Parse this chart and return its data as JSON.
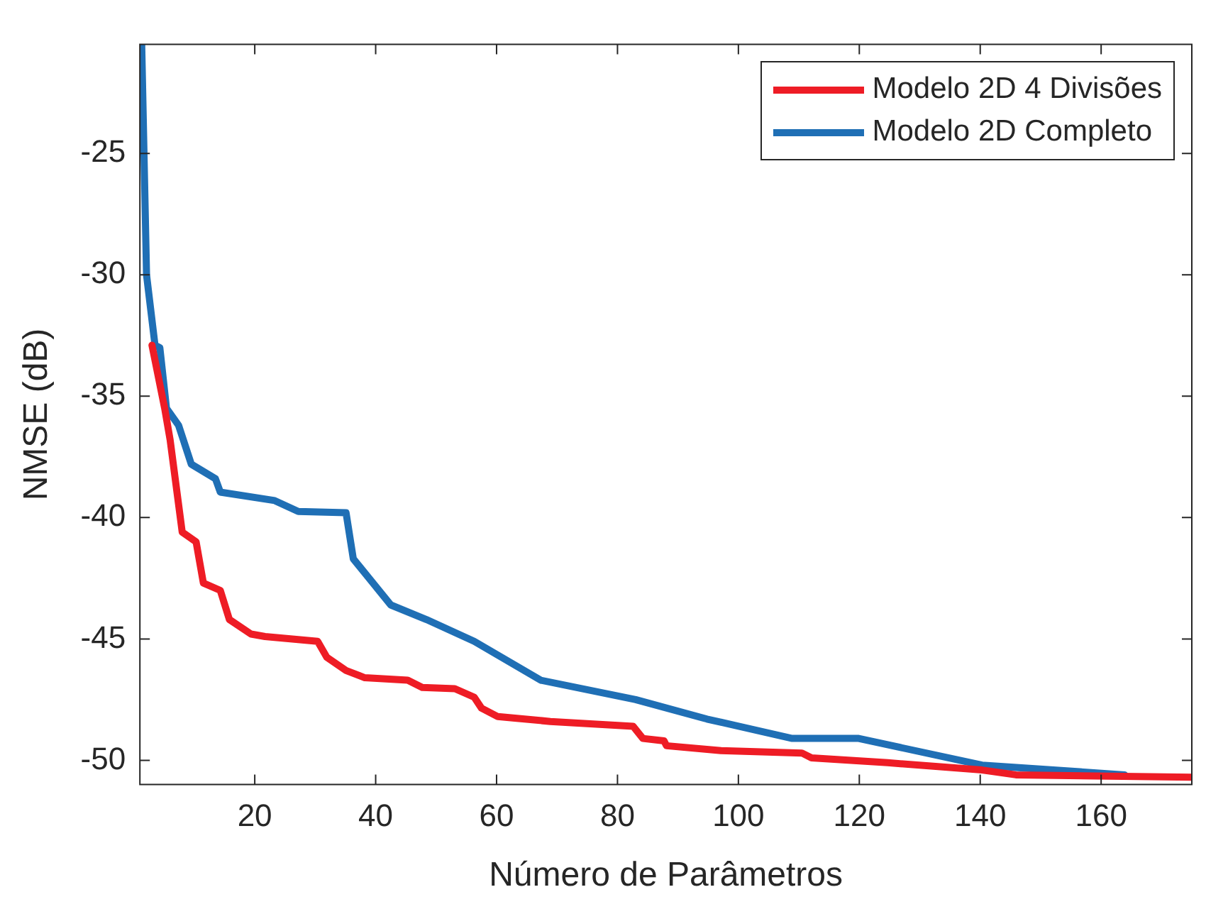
{
  "chart_data": {
    "type": "line",
    "xlabel": "Número de Parâmetros",
    "ylabel": "NMSE (dB)",
    "xlim": [
      1,
      175
    ],
    "xticks": [
      20,
      40,
      60,
      80,
      100,
      120,
      140,
      160
    ],
    "ylim": [
      -51,
      -20.5
    ],
    "yticks": [
      -50,
      -45,
      -40,
      -35,
      -30,
      -25
    ],
    "grid": false,
    "legend": "top right",
    "marker": "none",
    "line_style": "solid",
    "series": [
      {
        "name": "Modelo 2D 4 Divisões",
        "color": "#ee1c25",
        "x": [
          3.0,
          5.1,
          6.0,
          8.0,
          10.3,
          11.5,
          14.3,
          15.8,
          19.4,
          21.7,
          30.4,
          31.9,
          35.1,
          38.2,
          45.3,
          47.7,
          53.1,
          56.3,
          57.5,
          60.2,
          68.9,
          82.6,
          84.2,
          87.7,
          88.1,
          97.1,
          110.5,
          112.1,
          124.7,
          140.3,
          145.9,
          175
        ],
        "values": [
          -32.9,
          -35.5,
          -36.8,
          -40.6,
          -41.0,
          -42.7,
          -43.0,
          -44.2,
          -44.8,
          -44.9,
          -45.1,
          -45.75,
          -46.3,
          -46.6,
          -46.7,
          -47.0,
          -47.05,
          -47.4,
          -47.85,
          -48.2,
          -48.4,
          -48.6,
          -49.1,
          -49.2,
          -49.4,
          -49.6,
          -49.7,
          -49.9,
          -50.1,
          -50.4,
          -50.6,
          -50.7
        ]
      },
      {
        "name": "Modelo 2D Completo",
        "color": "#1f6fb5",
        "x": [
          1.3,
          2.1,
          3.5,
          4.3,
          5.4,
          7.4,
          9.5,
          13.5,
          14.3,
          23.3,
          27.2,
          35.1,
          36.3,
          42.5,
          48.4,
          56.3,
          67.3,
          83.0,
          94.8,
          108.9,
          119.9,
          140.3,
          163.9
        ],
        "values": [
          -20.5,
          -30.0,
          -32.9,
          -33.0,
          -35.5,
          -36.2,
          -37.8,
          -38.4,
          -38.95,
          -39.3,
          -39.75,
          -39.8,
          -41.7,
          -43.6,
          -44.2,
          -45.1,
          -46.7,
          -47.5,
          -48.3,
          -49.1,
          -49.1,
          -50.2,
          -50.6
        ]
      }
    ]
  }
}
